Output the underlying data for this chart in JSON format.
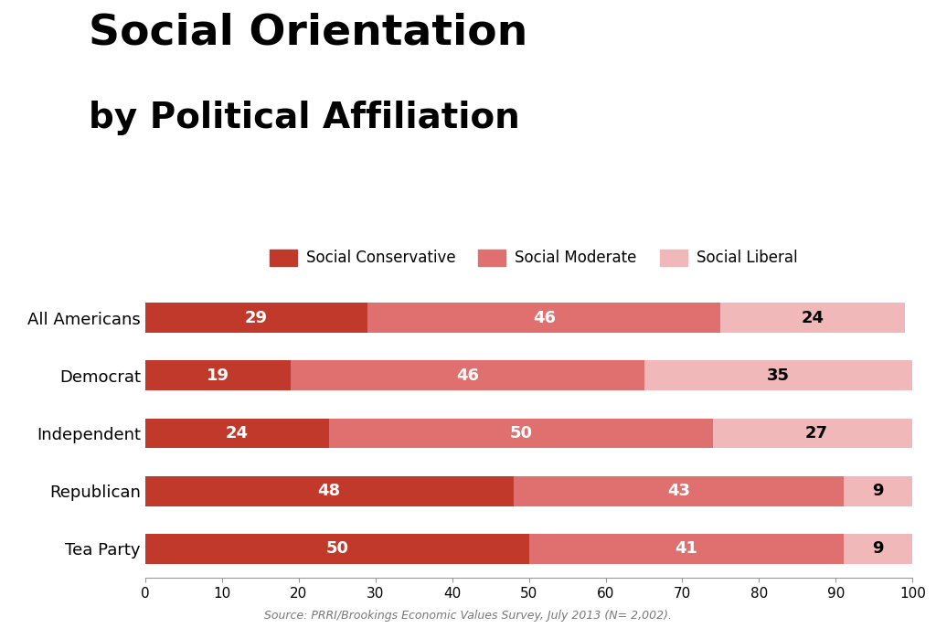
{
  "title_line1": "Social Orientation",
  "title_line2": "by Political Affiliation",
  "categories": [
    "All Americans",
    "Democrat",
    "Independent",
    "Republican",
    "Tea Party"
  ],
  "conservative": [
    29,
    19,
    24,
    48,
    50
  ],
  "moderate": [
    46,
    46,
    50,
    43,
    41
  ],
  "liberal": [
    24,
    35,
    27,
    9,
    9
  ],
  "color_conservative": "#c0392b",
  "color_moderate": "#e07070",
  "color_liberal": "#f0b8b8",
  "legend_labels": [
    "Social Conservative",
    "Social Moderate",
    "Social Liberal"
  ],
  "xlim": [
    0,
    100
  ],
  "xticks": [
    0,
    10,
    20,
    30,
    40,
    50,
    60,
    70,
    80,
    90,
    100
  ],
  "source_text": "Source: PRRI/Brookings Economic Values Survey, July 2013 (N= 2,002).",
  "background_color": "#ffffff",
  "bar_height": 0.52,
  "value_fontsize": 13,
  "label_fontsize": 13,
  "tick_fontsize": 11,
  "title_fontsize_line1": 34,
  "title_fontsize_line2": 28,
  "legend_fontsize": 12,
  "source_fontsize": 9
}
